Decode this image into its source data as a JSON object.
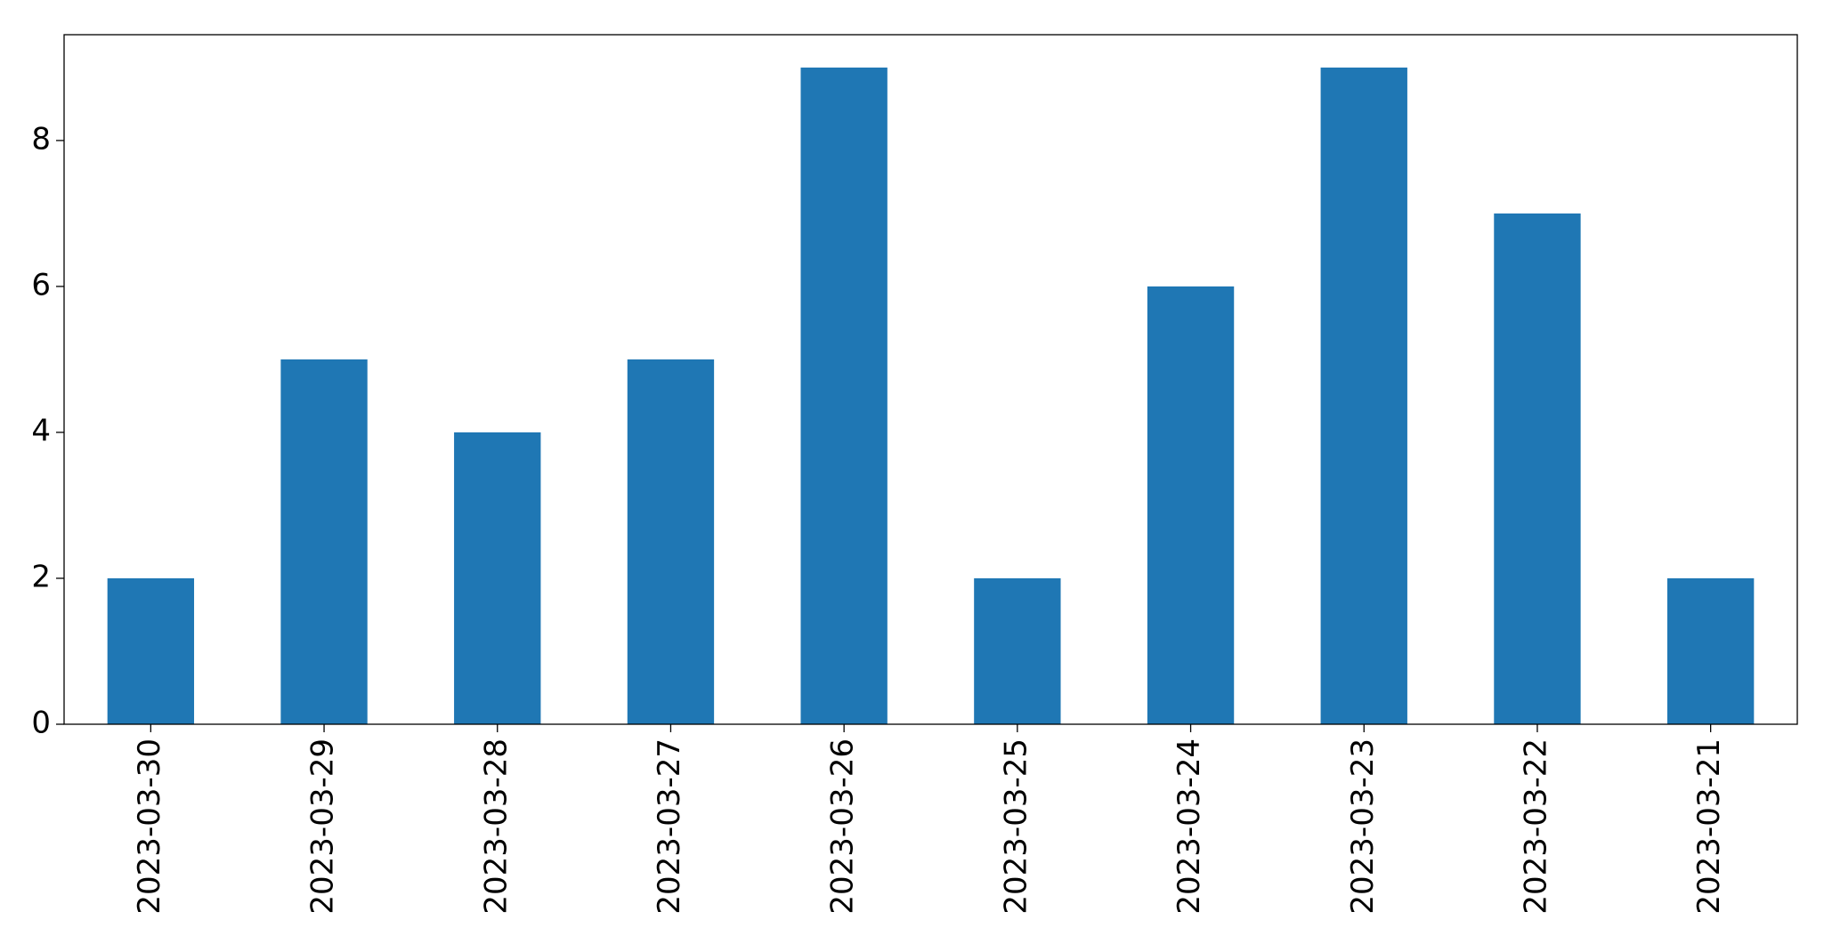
{
  "chart_data": {
    "type": "bar",
    "categories": [
      "2023-03-30",
      "2023-03-29",
      "2023-03-28",
      "2023-03-27",
      "2023-03-26",
      "2023-03-25",
      "2023-03-24",
      "2023-03-23",
      "2023-03-22",
      "2023-03-21"
    ],
    "values": [
      2,
      5,
      4,
      5,
      9,
      2,
      6,
      9,
      7,
      2
    ],
    "color": "#1f77b4",
    "ylim": [
      0,
      9.45
    ],
    "yticks": [
      0,
      2,
      4,
      6,
      8
    ],
    "grid": false
  }
}
